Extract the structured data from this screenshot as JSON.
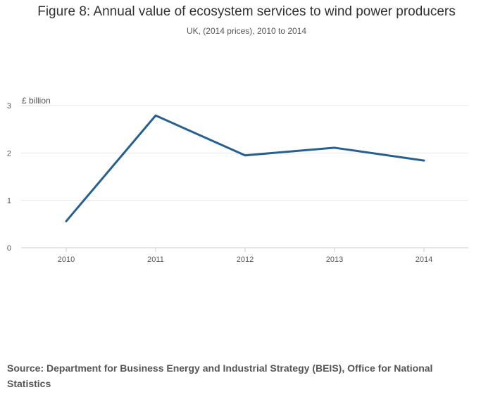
{
  "chart_data": {
    "type": "line",
    "title": "Figure 8: Annual value of ecosystem services to wind power producers",
    "subtitle": "UK, (2014 prices), 2010 to 2014",
    "ylabel": "£ billion",
    "xlabel": "",
    "categories": [
      "2010",
      "2011",
      "2012",
      "2013",
      "2014"
    ],
    "series": [
      {
        "name": "Annual value",
        "values": [
          0.56,
          2.79,
          1.95,
          2.11,
          1.84
        ],
        "color": "#27608f"
      }
    ],
    "yticks": [
      0,
      1,
      2,
      3
    ],
    "ylim": [
      0,
      3
    ],
    "grid": true,
    "legend": "none"
  },
  "source": "Source: Department for Business Energy and Industrial Strategy (BEIS), Office for National Statistics"
}
